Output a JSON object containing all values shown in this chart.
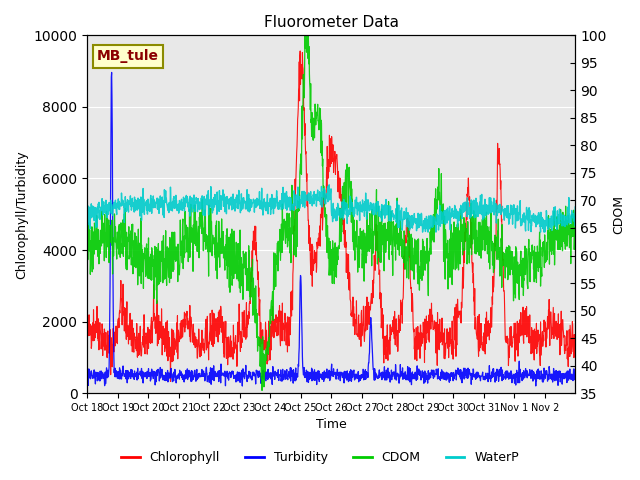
{
  "title": "Fluorometer Data",
  "xlabel": "Time",
  "ylabel_left": "Chlorophyll/Turbidity",
  "ylabel_right": "CDOM",
  "ylim_left": [
    0,
    10000
  ],
  "ylim_right": [
    35,
    100
  ],
  "xtick_labels": [
    "Oct 18",
    "Oct 19",
    "Oct 20",
    "Oct 21",
    "Oct 22",
    "Oct 23",
    "Oct 24",
    "Oct 25",
    "Oct 26",
    "Oct 27",
    "Oct 28",
    "Oct 29",
    "Oct 30",
    "Oct 31",
    "Nov 1",
    "Nov 2"
  ],
  "annotation_text": "MB_tule",
  "annotation_color": "#8B0000",
  "annotation_bg": "#FFFFCC",
  "bg_color": "#E8E8E8",
  "colors": {
    "chlorophyll": "#FF0000",
    "turbidity": "#0000FF",
    "cdom": "#00CC00",
    "waterp": "#00CCCC"
  },
  "legend_labels": [
    "Chlorophyll",
    "Turbidity",
    "CDOM",
    "WaterP"
  ]
}
